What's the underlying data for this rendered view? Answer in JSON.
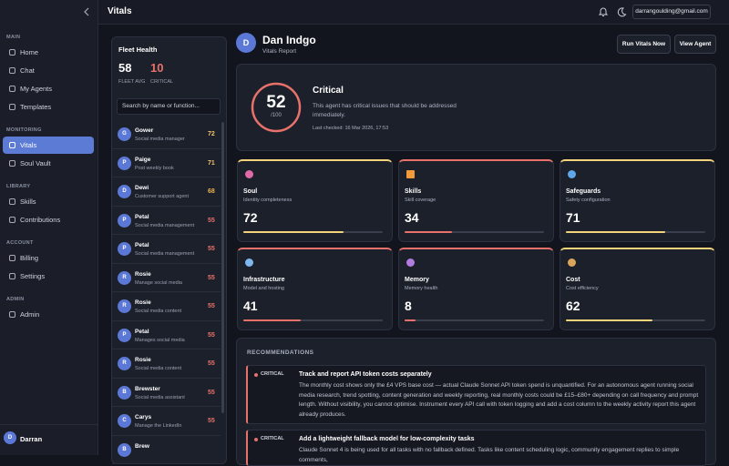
{
  "header": {
    "title": "Vitals",
    "email": "darrangoulding@gmail.com"
  },
  "sidebar": {
    "sections": [
      {
        "heading": "MAIN",
        "items": [
          {
            "label": "Home"
          },
          {
            "label": "Chat"
          },
          {
            "label": "My Agents"
          },
          {
            "label": "Templates"
          }
        ]
      },
      {
        "heading": "MONITORING",
        "items": [
          {
            "label": "Vitals",
            "active": true
          },
          {
            "label": "Soul Vault"
          }
        ]
      },
      {
        "heading": "LIBRARY",
        "items": [
          {
            "label": "Skills"
          },
          {
            "label": "Contributions"
          }
        ]
      },
      {
        "heading": "ACCOUNT",
        "items": [
          {
            "label": "Billing"
          },
          {
            "label": "Settings"
          }
        ]
      },
      {
        "heading": "ADMIN",
        "items": [
          {
            "label": "Admin"
          }
        ]
      }
    ],
    "user": {
      "initial": "D",
      "name": "Darran"
    }
  },
  "fleet": {
    "title": "Fleet Health",
    "average": 58,
    "average_label": "FLEET AVG",
    "critical": 10,
    "critical_label": "CRITICAL",
    "search_placeholder": "Search by name or function...",
    "agents": [
      {
        "initial": "G",
        "name": "Gower",
        "role": "Social media manager",
        "score": 72,
        "color": "#f2c46b"
      },
      {
        "initial": "P",
        "name": "Paige",
        "role": "Post weekly book",
        "score": 71,
        "color": "#f2c46b"
      },
      {
        "initial": "D",
        "name": "Dewi",
        "role": "Customer support agent",
        "score": 68,
        "color": "#e8b24f"
      },
      {
        "initial": "P",
        "name": "Petal",
        "role": "Social media management",
        "score": 55,
        "color": "#e8716b"
      },
      {
        "initial": "P",
        "name": "Petal",
        "role": "Social media management",
        "score": 55,
        "color": "#e8716b"
      },
      {
        "initial": "R",
        "name": "Rosie",
        "role": "Manage social media",
        "score": 55,
        "color": "#e8716b"
      },
      {
        "initial": "R",
        "name": "Rosie",
        "role": "Social media content",
        "score": 55,
        "color": "#e8716b"
      },
      {
        "initial": "P",
        "name": "Petal",
        "role": "Manages social media",
        "score": 55,
        "color": "#e8716b"
      },
      {
        "initial": "R",
        "name": "Rosie",
        "role": "Social media content",
        "score": 55,
        "color": "#e8716b"
      },
      {
        "initial": "B",
        "name": "Brewster",
        "role": "Social media assistant",
        "score": 55,
        "color": "#e8716b"
      },
      {
        "initial": "C",
        "name": "Carys",
        "role": "Manage the LinkedIn",
        "score": 55,
        "color": "#e8716b"
      },
      {
        "initial": "B",
        "name": "Brew"
      }
    ]
  },
  "agent": {
    "initial": "D",
    "name": "Dan Indgo",
    "subtitle": "Vitals Report",
    "buttons": [
      "Run Vitals Now",
      "View Agent"
    ]
  },
  "summary": {
    "score": 52,
    "score_suffix": "/100",
    "status": "Critical",
    "description": "This agent has critical issues that should be addressed immediately.",
    "last_checked": "Last checked: 16 Mar 2026, 17:53"
  },
  "metrics": [
    {
      "name": "Soul",
      "subtitle": "Identity completeness",
      "value": 72,
      "color": "#f2d27a"
    },
    {
      "name": "Skills",
      "subtitle": "Skill coverage",
      "value": 34,
      "color": "#e8716b"
    },
    {
      "name": "Safeguards",
      "subtitle": "Safety configuration",
      "value": 71,
      "color": "#f2d27a"
    },
    {
      "name": "Infrastructure",
      "subtitle": "Model and hosting",
      "value": 41,
      "color": "#e8716b"
    },
    {
      "name": "Memory",
      "subtitle": "Memory health",
      "value": 8,
      "color": "#e8716b"
    },
    {
      "name": "Cost",
      "subtitle": "Cost efficiency",
      "value": 62,
      "color": "#f2d27a"
    }
  ],
  "metric_scale_max": 100,
  "recommendations": {
    "title": "RECOMMENDATIONS",
    "items": [
      {
        "severity": "CRITICAL",
        "title": "Track and report API token costs separately",
        "body": "The monthly cost shows only the £4 VPS base cost — actual Claude Sonnet API token spend is unquantified. For an autonomous agent running social media research, trend spotting, content generation and weekly reporting, real monthly costs could be £15–£80+ depending on call frequency and prompt length. Without visibility, you cannot optimise. Instrument every API call with token logging and add a cost column to the weekly activity report this agent already produces."
      },
      {
        "severity": "CRITICAL",
        "title": "Add a lightweight fallback model for low-complexity tasks",
        "body": "Claude Sonnet 4 is being used for all tasks with no fallback defined. Tasks like content scheduling logic, community engagement replies to simple comments,"
      }
    ]
  }
}
